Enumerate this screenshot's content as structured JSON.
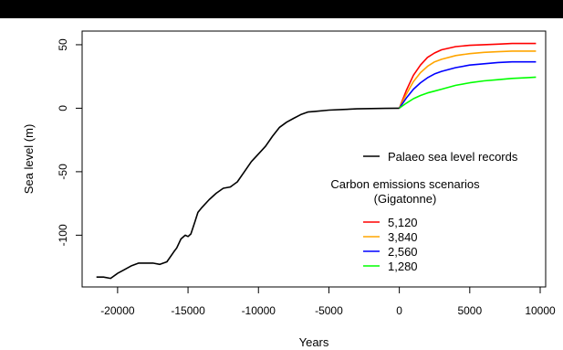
{
  "chart_data": {
    "type": "line",
    "title": "",
    "xlabel": "Years",
    "ylabel": "Sea level (m)",
    "xlim": [
      -22000,
      10000
    ],
    "ylim": [
      -135,
      55
    ],
    "x_ticks": [
      -20000,
      -15000,
      -10000,
      -5000,
      0,
      5000,
      10000
    ],
    "x_tick_labels": [
      "-20000",
      "-15000",
      "-10000",
      "-5000",
      "0",
      "5000",
      "10000"
    ],
    "y_ticks": [
      -100,
      -50,
      0,
      50
    ],
    "y_tick_labels": [
      "-100",
      "-50",
      "0",
      "50"
    ],
    "grid": false,
    "legend_position": "bottom-right",
    "legend_group_title": "Carbon emissions scenarios\n(Gigatonne)",
    "series": [
      {
        "name": "Palaeo sea level records",
        "color": "#000000",
        "x": [
          -21500,
          -21000,
          -20500,
          -20000,
          -19500,
          -19000,
          -18500,
          -18000,
          -17500,
          -17000,
          -16500,
          -16000,
          -15800,
          -15500,
          -15200,
          -15000,
          -14800,
          -14500,
          -14300,
          -14000,
          -13500,
          -13000,
          -12500,
          -12000,
          -11500,
          -11000,
          -10500,
          -10000,
          -9500,
          -9000,
          -8500,
          -8000,
          -7500,
          -7000,
          -6500,
          -6000,
          -5000,
          -4000,
          -3000,
          -2000,
          -1000,
          0
        ],
        "y": [
          -133,
          -133,
          -134,
          -130,
          -127,
          -124,
          -122,
          -122,
          -122,
          -123,
          -121,
          -113,
          -110,
          -103,
          -100,
          -101,
          -99,
          -89,
          -82,
          -78,
          -72,
          -67,
          -63,
          -62,
          -58,
          -50,
          -42,
          -36,
          -30,
          -22,
          -15,
          -11,
          -8,
          -5,
          -3,
          -2.5,
          -1.5,
          -1,
          -0.5,
          -0.3,
          -0.1,
          0
        ]
      },
      {
        "name": "5,120",
        "color": "#ff0000",
        "x": [
          0,
          500,
          1000,
          1500,
          2000,
          2500,
          3000,
          4000,
          5000,
          6000,
          7000,
          8000,
          9000,
          9700
        ],
        "y": [
          0,
          14,
          26,
          34,
          40,
          43.5,
          46,
          48.5,
          49.5,
          50,
          50.5,
          51,
          51,
          51
        ]
      },
      {
        "name": "3,840",
        "color": "#ffa500",
        "x": [
          0,
          500,
          1000,
          1500,
          2000,
          2500,
          3000,
          4000,
          5000,
          6000,
          7000,
          8000,
          9000,
          9700
        ],
        "y": [
          0,
          11,
          21,
          28,
          33,
          36.5,
          38.5,
          41.5,
          43,
          44,
          44.5,
          45,
          45,
          45
        ]
      },
      {
        "name": "2,560",
        "color": "#0000ff",
        "x": [
          0,
          500,
          1000,
          1500,
          2000,
          2500,
          3000,
          4000,
          5000,
          6000,
          7000,
          8000,
          9000,
          9700
        ],
        "y": [
          0,
          8,
          15,
          20,
          24,
          27,
          29,
          32,
          34,
          35,
          36,
          36.5,
          36.5,
          36.5
        ]
      },
      {
        "name": "1,280",
        "color": "#00ff00",
        "x": [
          0,
          500,
          1000,
          1500,
          2000,
          2500,
          3000,
          4000,
          5000,
          6000,
          7000,
          8000,
          9000,
          9700
        ],
        "y": [
          0,
          4,
          7.5,
          10,
          12,
          13.5,
          15,
          18,
          20,
          21.5,
          22.5,
          23.5,
          24,
          24.5
        ]
      }
    ]
  }
}
